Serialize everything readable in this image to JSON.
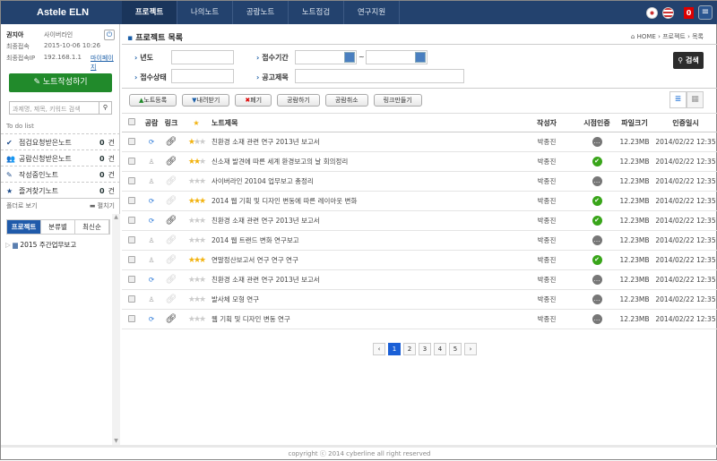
{
  "app": {
    "logo": "Astele ELN"
  },
  "nav": [
    "프로젝트",
    "나의노트",
    "공람노트",
    "노트점검",
    "연구지원"
  ],
  "nav_active": 0,
  "top": {
    "notif_count": "0",
    "flags": [
      "korea-flag",
      "usa-flag"
    ]
  },
  "user": {
    "name": "권지아",
    "org": "사이버라인",
    "last_login_label": "최종접속",
    "last_login": "2015-10-06 10:26",
    "ip_label": "최종접속IP",
    "ip": "192.168.1.1",
    "mypage": "마이페이지"
  },
  "sidebar": {
    "write_btn": "노트작성하기",
    "search_placeholder": "과제명, 제목, 키워드 검색",
    "todo_title": "To do list",
    "todo": [
      {
        "icon": "check-icon",
        "label": "점검요청받은노트",
        "count": "0",
        "unit": "건"
      },
      {
        "icon": "users-icon",
        "label": "공람신청받은노트",
        "count": "0",
        "unit": "건"
      },
      {
        "icon": "pencil-icon",
        "label": "작성중인노트",
        "count": "0",
        "unit": "건"
      },
      {
        "icon": "star-icon",
        "label": "즐겨찾기노트",
        "count": "0",
        "unit": "건"
      }
    ],
    "folder_view": "폴더로 보기",
    "expand": "펼치기",
    "tabs": [
      "프로젝트",
      "분류별",
      "최신순"
    ],
    "tree": [
      "2015 주간업무보고"
    ]
  },
  "main": {
    "title": "프로젝트 목록",
    "breadcrumb": [
      "HOME",
      "프로젝트",
      "목록"
    ],
    "search": {
      "year": "년도",
      "period": "접수기간",
      "status": "접수상태",
      "subject": "공고제목",
      "tilde": "~",
      "button": "검색"
    },
    "toolbar": [
      "노트등록",
      "내려받기",
      "폐기",
      "공람하기",
      "공람취소",
      "링크만들기"
    ],
    "columns": [
      "공람",
      "링크",
      "★",
      "노트제목",
      "작성자",
      "시점인증",
      "파일크기",
      "인증일시"
    ],
    "rows": [
      {
        "shared": true,
        "link": true,
        "stars": 1,
        "title": "친환경 소재 관련 연구 2013년 보고서",
        "author": "박종진",
        "cert": false,
        "size": "12.23MB",
        "date": "2014/02/22  12:35"
      },
      {
        "shared": false,
        "link": true,
        "stars": 2,
        "title": "신소재 발견에 따른 세계 환경보고의 날 회의정리",
        "author": "박종진",
        "cert": true,
        "size": "12.23MB",
        "date": "2014/02/22  12:35"
      },
      {
        "shared": false,
        "link": false,
        "stars": 0,
        "title": "사이버라인 20104 업무보고 총정리",
        "author": "박종진",
        "cert": false,
        "size": "12.23MB",
        "date": "2014/02/22  12:35"
      },
      {
        "shared": true,
        "link": false,
        "stars": 3,
        "title": "2014 웹 기획 및 디자인 변동에 따른 레이아웃 변화",
        "author": "박종진",
        "cert": true,
        "size": "12.23MB",
        "date": "2014/02/22  12:35"
      },
      {
        "shared": true,
        "link": true,
        "stars": 0,
        "title": "친환경 소재 관련 연구 2013년 보고서",
        "author": "박종진",
        "cert": true,
        "size": "12.23MB",
        "date": "2014/02/22  12:35"
      },
      {
        "shared": false,
        "link": false,
        "stars": 0,
        "title": "2014 웹 트랜드 변화 연구보고",
        "author": "박종진",
        "cert": false,
        "size": "12.23MB",
        "date": "2014/02/22  12:35"
      },
      {
        "shared": false,
        "link": false,
        "stars": 3,
        "title": "연말정산보고서 연구 연구 연구",
        "author": "박종진",
        "cert": true,
        "size": "12.23MB",
        "date": "2014/02/22  12:35"
      },
      {
        "shared": true,
        "link": false,
        "stars": 0,
        "title": "친환경 소재 관련 연구 2013년 보고서",
        "author": "박종진",
        "cert": false,
        "size": "12.23MB",
        "date": "2014/02/22  12:35"
      },
      {
        "shared": false,
        "link": false,
        "stars": 0,
        "title": "발사체 모형 연구",
        "author": "박종진",
        "cert": false,
        "size": "12.23MB",
        "date": "2014/02/22  12:35"
      },
      {
        "shared": true,
        "link": true,
        "stars": 0,
        "title": "웹 기획 및 디자인 변동 연구",
        "author": "박종진",
        "cert": false,
        "size": "12.23MB",
        "date": "2014/02/22  12:35"
      }
    ],
    "pages": [
      "1",
      "2",
      "3",
      "4",
      "5"
    ],
    "current_page": "1"
  },
  "footer": "copyright ⓒ 2014 cyberline all right reserved"
}
